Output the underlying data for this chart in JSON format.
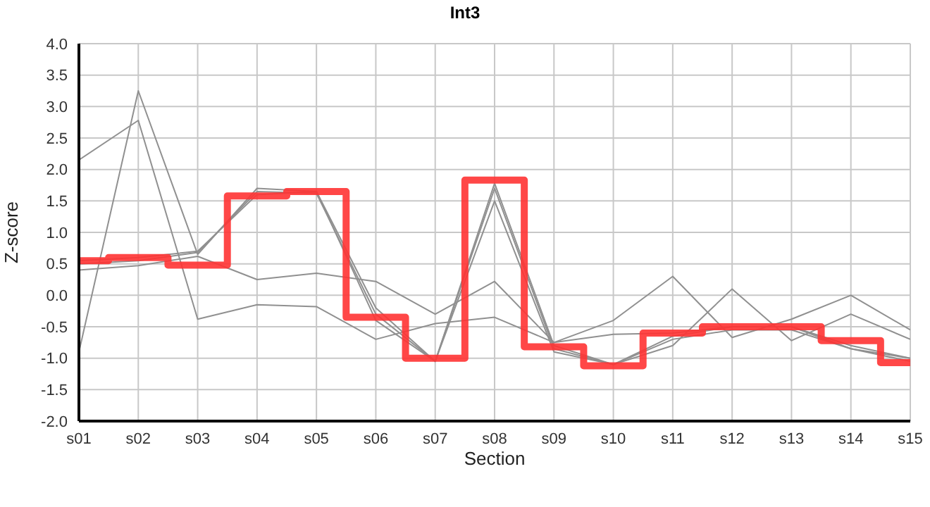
{
  "chart_data": {
    "type": "line",
    "title": "Int3",
    "xlabel": "Section",
    "ylabel": "Z-score",
    "categories": [
      "s01",
      "s02",
      "s03",
      "s04",
      "s05",
      "s06",
      "s07",
      "s08",
      "s09",
      "s10",
      "s11",
      "s12",
      "s13",
      "s14",
      "s15"
    ],
    "ylim": [
      -2.0,
      4.0
    ],
    "yticks": [
      {
        "value": -2,
        "label": "-2.0"
      },
      {
        "value": -1.5,
        "label": "-1.5"
      },
      {
        "value": -1,
        "label": "-1.0"
      },
      {
        "value": -0.5,
        "label": "-0.5"
      },
      {
        "value": 0,
        "label": "0.0"
      },
      {
        "value": 0.5,
        "label": "0.5"
      },
      {
        "value": 1,
        "label": "1.0"
      },
      {
        "value": 1.5,
        "label": "1.5"
      },
      {
        "value": 2,
        "label": "2.0"
      },
      {
        "value": 2.5,
        "label": "2.5"
      },
      {
        "value": 3,
        "label": "3.0"
      },
      {
        "value": 3.5,
        "label": "3.5"
      },
      {
        "value": 4,
        "label": "4.0"
      }
    ],
    "grid": true,
    "legend": false,
    "marker": "none",
    "line_style": "solid",
    "series": [
      {
        "type": "line",
        "color": "#909090",
        "values": [
          2.15,
          2.78,
          -0.38,
          -0.15,
          -0.18,
          -0.7,
          -0.45,
          -0.35,
          -0.75,
          -0.4,
          0.3,
          -0.67,
          -0.38,
          0.0,
          -0.55
        ]
      },
      {
        "type": "line",
        "color": "#909090",
        "values": [
          -0.9,
          3.25,
          0.65,
          1.7,
          1.65,
          -0.2,
          -1.05,
          1.78,
          -0.8,
          -1.1,
          -0.8,
          0.1,
          -0.72,
          -0.3,
          -0.7
        ]
      },
      {
        "type": "line",
        "color": "#909090",
        "values": [
          0.4,
          0.47,
          0.62,
          0.25,
          0.35,
          0.22,
          -0.3,
          0.22,
          -0.75,
          -0.62,
          -0.6,
          -0.5,
          -0.5,
          -0.85,
          -1.0
        ]
      },
      {
        "type": "line",
        "color": "#909090",
        "values": [
          0.55,
          0.6,
          0.7,
          1.6,
          1.65,
          -0.4,
          -1.05,
          1.7,
          -0.85,
          -1.1,
          -0.65,
          -0.5,
          -0.5,
          -0.8,
          -1.0
        ]
      },
      {
        "type": "line",
        "color": "#909090",
        "values": [
          0.5,
          0.55,
          0.68,
          1.65,
          1.62,
          -0.3,
          -1.05,
          1.5,
          -0.9,
          -1.1,
          -0.7,
          -0.55,
          -0.55,
          -0.85,
          -1.05
        ]
      },
      {
        "type": "step",
        "color": "#ff3333",
        "values": [
          0.55,
          0.6,
          0.48,
          1.58,
          1.65,
          -0.35,
          -1.0,
          1.83,
          -0.82,
          -1.12,
          -0.6,
          -0.5,
          -0.5,
          -0.72,
          -1.07
        ]
      }
    ]
  }
}
